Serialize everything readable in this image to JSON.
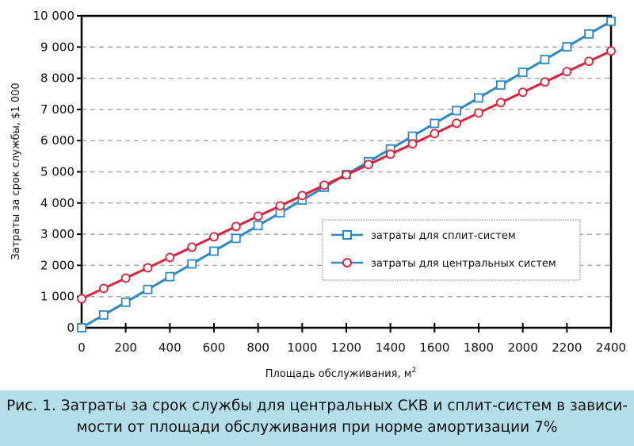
{
  "chart_data": {
    "type": "line",
    "title": "",
    "xlabel": "Площадь обслуживания, м",
    "xlabel_sup": "2",
    "ylabel": "Затраты за срок службы, $1 000",
    "xlim": [
      0,
      2400
    ],
    "ylim": [
      0,
      10000
    ],
    "x_ticks": [
      "0",
      "200",
      "400",
      "600",
      "800",
      "1000",
      "1200",
      "1400",
      "1600",
      "1800",
      "2000",
      "2200",
      "2400"
    ],
    "y_ticks": [
      "0",
      "1 000",
      "2 000",
      "3 000",
      "4 000",
      "5 000",
      "6 000",
      "7 000",
      "8 000",
      "9 000",
      "10 000"
    ],
    "grid": "horizontal dashed",
    "legend_position": "center-right",
    "x": [
      0,
      100,
      200,
      300,
      400,
      500,
      600,
      700,
      800,
      900,
      1000,
      1100,
      1200,
      1300,
      1400,
      1500,
      1600,
      1700,
      1800,
      1900,
      2000,
      2100,
      2200,
      2300,
      2400
    ],
    "series": [
      {
        "name": "затраты для сплит-систем",
        "color": "#2a8ac8",
        "marker": "square",
        "values": [
          0,
          410,
          819,
          1229,
          1638,
          2048,
          2457,
          2867,
          3276,
          3686,
          4095,
          4505,
          4914,
          5324,
          5733,
          6143,
          6552,
          6962,
          7371,
          7781,
          8190,
          8600,
          9009,
          9419,
          9828
        ]
      },
      {
        "name": "затраты для центральных систем",
        "color": "#e0203a",
        "marker": "circle",
        "values": [
          930,
          1261,
          1592,
          1923,
          2254,
          2585,
          2916,
          3247,
          3578,
          3909,
          4240,
          4571,
          4902,
          5233,
          5564,
          5895,
          6226,
          6557,
          6888,
          7219,
          7550,
          7881,
          8212,
          8543,
          8874
        ]
      }
    ]
  },
  "caption": {
    "line1": "Рис. 1. Затраты за срок службы для центральных СКВ и сплит-систем в зависи-",
    "line2": "мости от площади обслуживания при норме амортизации 7%"
  }
}
